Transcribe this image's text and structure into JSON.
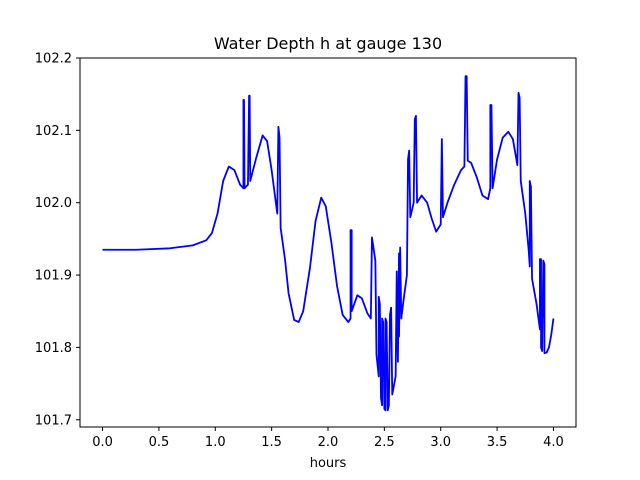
{
  "chart_data": {
    "type": "line",
    "title": "Water Depth h at gauge 130",
    "xlabel": "hours",
    "ylabel": "",
    "xlim": [
      -0.2,
      4.2
    ],
    "ylim": [
      101.69,
      102.2
    ],
    "xticks": [
      0.0,
      0.5,
      1.0,
      1.5,
      2.0,
      2.5,
      3.0,
      3.5,
      4.0
    ],
    "xtick_labels": [
      "0.0",
      "0.5",
      "1.0",
      "1.5",
      "2.0",
      "2.5",
      "3.0",
      "3.5",
      "4.0"
    ],
    "yticks": [
      101.7,
      101.8,
      101.9,
      102.0,
      102.1,
      102.2
    ],
    "ytick_labels": [
      "101.7",
      "101.8",
      "101.9",
      "102.0",
      "102.1",
      "102.2"
    ],
    "grid": false,
    "series": [
      {
        "color": "#0000ff",
        "points": [
          [
            0.0,
            101.935
          ],
          [
            0.3,
            101.935
          ],
          [
            0.6,
            101.937
          ],
          [
            0.8,
            101.941
          ],
          [
            0.92,
            101.948
          ],
          [
            0.97,
            101.958
          ],
          [
            1.02,
            101.985
          ],
          [
            1.07,
            102.03
          ],
          [
            1.12,
            102.05
          ],
          [
            1.17,
            102.045
          ],
          [
            1.22,
            102.025
          ],
          [
            1.25,
            102.02
          ],
          [
            1.25,
            102.142
          ],
          [
            1.255,
            102.142
          ],
          [
            1.26,
            102.02
          ],
          [
            1.29,
            102.025
          ],
          [
            1.3,
            102.148
          ],
          [
            1.305,
            102.148
          ],
          [
            1.31,
            102.03
          ],
          [
            1.36,
            102.06
          ],
          [
            1.42,
            102.093
          ],
          [
            1.46,
            102.085
          ],
          [
            1.5,
            102.045
          ],
          [
            1.55,
            101.985
          ],
          [
            1.56,
            102.105
          ],
          [
            1.57,
            102.09
          ],
          [
            1.58,
            101.965
          ],
          [
            1.62,
            101.92
          ],
          [
            1.65,
            101.875
          ],
          [
            1.7,
            101.838
          ],
          [
            1.74,
            101.835
          ],
          [
            1.78,
            101.85
          ],
          [
            1.84,
            101.91
          ],
          [
            1.89,
            101.975
          ],
          [
            1.94,
            102.007
          ],
          [
            1.98,
            101.995
          ],
          [
            2.03,
            101.945
          ],
          [
            2.08,
            101.885
          ],
          [
            2.13,
            101.845
          ],
          [
            2.18,
            101.835
          ],
          [
            2.2,
            101.84
          ],
          [
            2.2,
            101.962
          ],
          [
            2.21,
            101.962
          ],
          [
            2.21,
            101.85
          ],
          [
            2.26,
            101.872
          ],
          [
            2.3,
            101.868
          ],
          [
            2.35,
            101.847
          ],
          [
            2.38,
            101.84
          ],
          [
            2.39,
            101.952
          ],
          [
            2.42,
            101.92
          ],
          [
            2.43,
            101.79
          ],
          [
            2.45,
            101.76
          ],
          [
            2.45,
            101.87
          ],
          [
            2.46,
            101.86
          ],
          [
            2.47,
            101.73
          ],
          [
            2.48,
            101.72
          ],
          [
            2.48,
            101.84
          ],
          [
            2.49,
            101.835
          ],
          [
            2.5,
            101.715
          ],
          [
            2.51,
            101.713
          ],
          [
            2.51,
            101.84
          ],
          [
            2.52,
            101.835
          ],
          [
            2.53,
            101.713
          ],
          [
            2.54,
            101.72
          ],
          [
            2.55,
            101.845
          ],
          [
            2.56,
            101.855
          ],
          [
            2.57,
            101.735
          ],
          [
            2.6,
            101.76
          ],
          [
            2.61,
            101.905
          ],
          [
            2.62,
            101.78
          ],
          [
            2.63,
            101.93
          ],
          [
            2.63,
            101.815
          ],
          [
            2.64,
            101.938
          ],
          [
            2.65,
            101.84
          ],
          [
            2.67,
            101.865
          ],
          [
            2.7,
            101.9
          ],
          [
            2.71,
            102.06
          ],
          [
            2.72,
            102.072
          ],
          [
            2.73,
            101.98
          ],
          [
            2.76,
            102.0
          ],
          [
            2.77,
            102.115
          ],
          [
            2.78,
            102.12
          ],
          [
            2.79,
            102.0
          ],
          [
            2.83,
            102.01
          ],
          [
            2.88,
            102.0
          ],
          [
            2.92,
            101.978
          ],
          [
            2.96,
            101.96
          ],
          [
            3.0,
            101.97
          ],
          [
            3.01,
            102.088
          ],
          [
            3.02,
            101.98
          ],
          [
            3.06,
            102.0
          ],
          [
            3.12,
            102.025
          ],
          [
            3.18,
            102.045
          ],
          [
            3.21,
            102.05
          ],
          [
            3.22,
            102.175
          ],
          [
            3.23,
            102.175
          ],
          [
            3.24,
            102.058
          ],
          [
            3.27,
            102.055
          ],
          [
            3.32,
            102.035
          ],
          [
            3.37,
            102.01
          ],
          [
            3.42,
            102.005
          ],
          [
            3.44,
            102.02
          ],
          [
            3.44,
            102.135
          ],
          [
            3.45,
            102.135
          ],
          [
            3.46,
            102.02
          ],
          [
            3.5,
            102.06
          ],
          [
            3.55,
            102.09
          ],
          [
            3.6,
            102.098
          ],
          [
            3.64,
            102.088
          ],
          [
            3.68,
            102.052
          ],
          [
            3.69,
            102.152
          ],
          [
            3.7,
            102.145
          ],
          [
            3.71,
            102.03
          ],
          [
            3.75,
            101.985
          ],
          [
            3.78,
            101.935
          ],
          [
            3.79,
            101.912
          ],
          [
            3.79,
            102.03
          ],
          [
            3.8,
            102.022
          ],
          [
            3.81,
            101.895
          ],
          [
            3.85,
            101.86
          ],
          [
            3.88,
            101.825
          ],
          [
            3.88,
            101.922
          ],
          [
            3.89,
            101.922
          ],
          [
            3.89,
            101.8
          ],
          [
            3.9,
            101.795
          ],
          [
            3.91,
            101.92
          ],
          [
            3.92,
            101.915
          ],
          [
            3.92,
            101.792
          ],
          [
            3.94,
            101.793
          ],
          [
            3.96,
            101.8
          ],
          [
            3.98,
            101.817
          ],
          [
            4.0,
            101.84
          ]
        ]
      }
    ]
  }
}
